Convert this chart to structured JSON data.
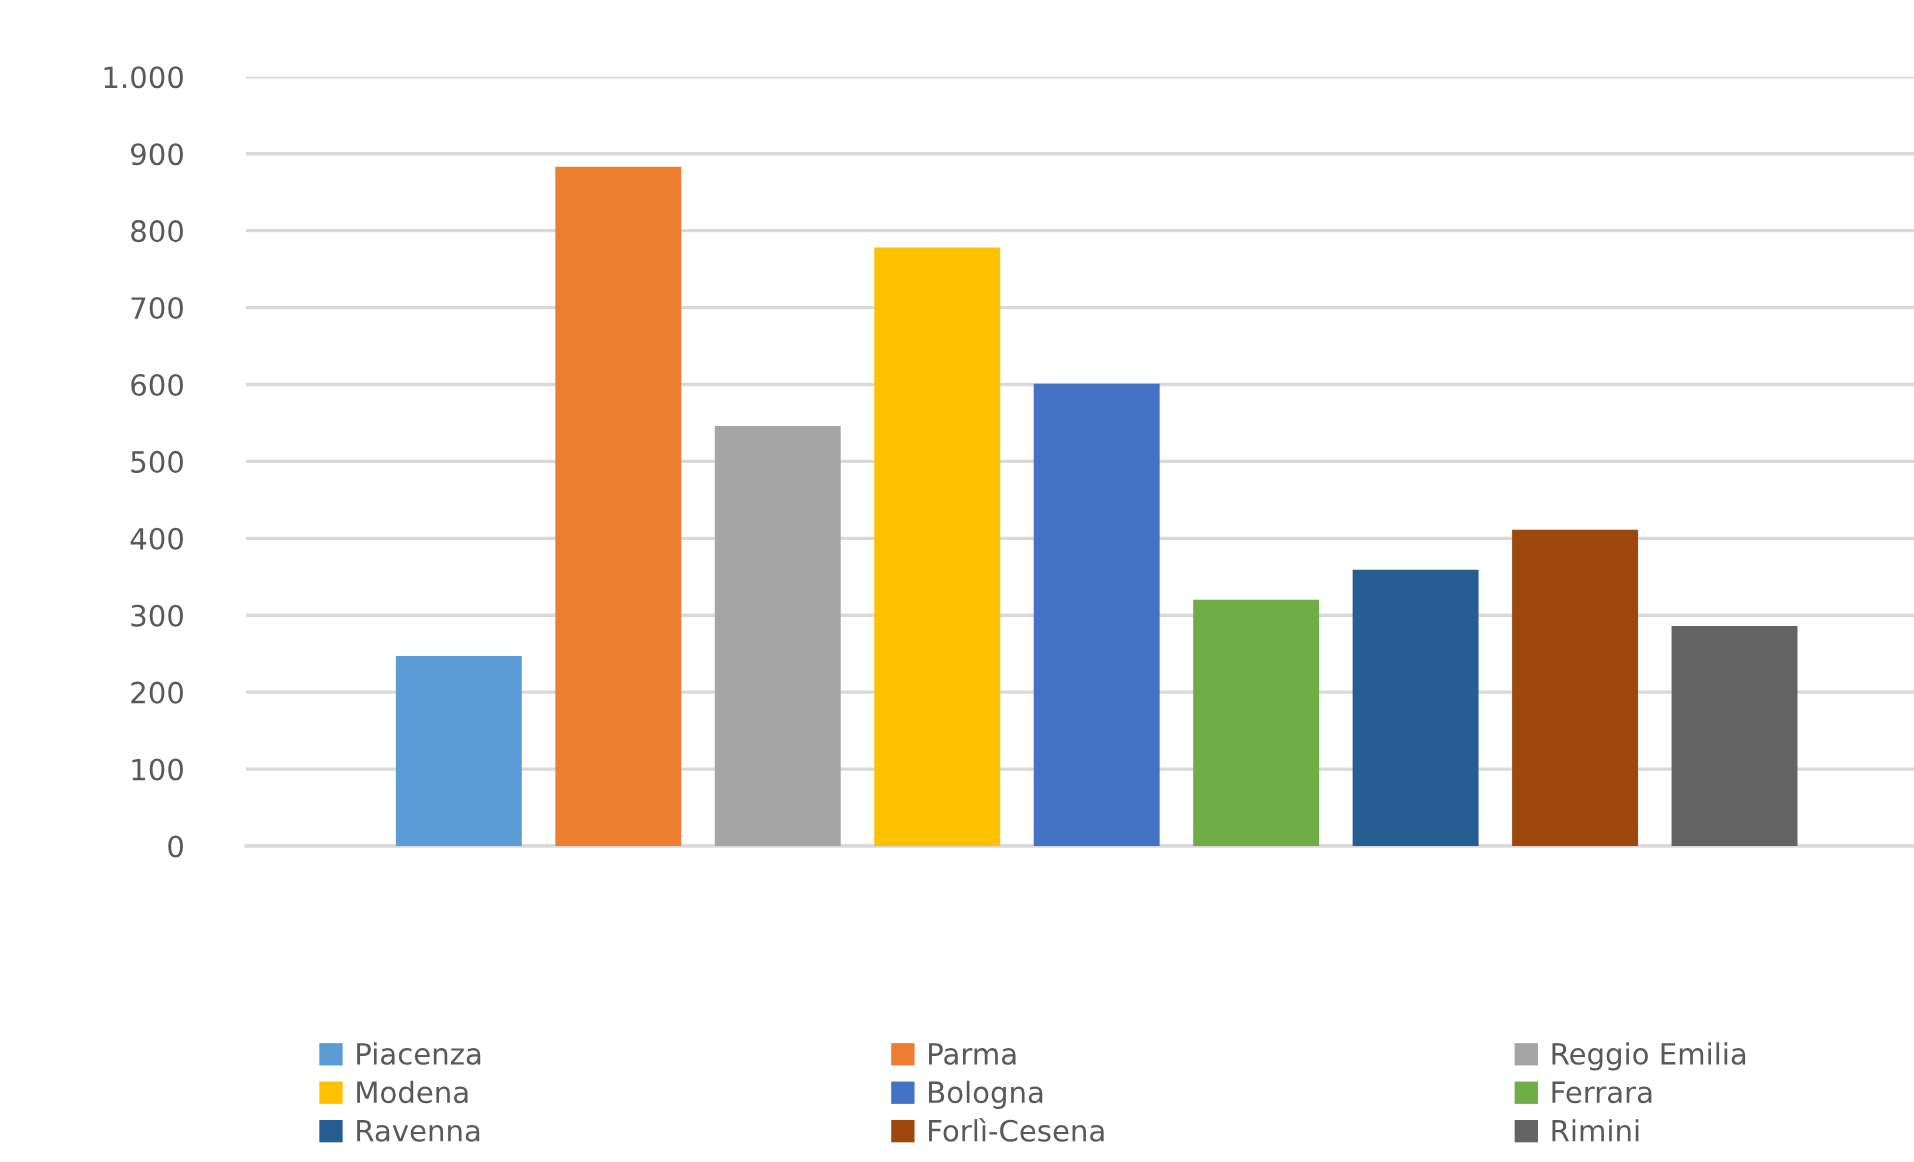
{
  "chart_data": {
    "type": "bar",
    "categories": [
      null
    ],
    "series": [
      {
        "name": "Piacenza",
        "color": "#5b9bd5",
        "values": [
          247
        ]
      },
      {
        "name": "Parma",
        "color": "#ed7d31",
        "values": [
          883
        ]
      },
      {
        "name": "Reggio Emilia",
        "color": "#a5a5a5",
        "values": [
          546
        ]
      },
      {
        "name": "Modena",
        "color": "#ffc000",
        "values": [
          778
        ]
      },
      {
        "name": "Bologna",
        "color": "#4472c4",
        "values": [
          601
        ]
      },
      {
        "name": "Ferrara",
        "color": "#70ad47",
        "values": [
          320
        ]
      },
      {
        "name": "Ravenna",
        "color": "#255e91",
        "values": [
          359
        ]
      },
      {
        "name": "Forlì-Cesena",
        "color": "#9e480e",
        "values": [
          411
        ]
      },
      {
        "name": "Rimini",
        "color": "#636363",
        "values": [
          286
        ]
      }
    ],
    "ylim": [
      0,
      1000
    ],
    "yticks": [
      0,
      100,
      200,
      300,
      400,
      500,
      600,
      700,
      800,
      900,
      {
        "value": 1000,
        "label": "1.000"
      }
    ],
    "grid": "y",
    "legend": "bottom"
  }
}
